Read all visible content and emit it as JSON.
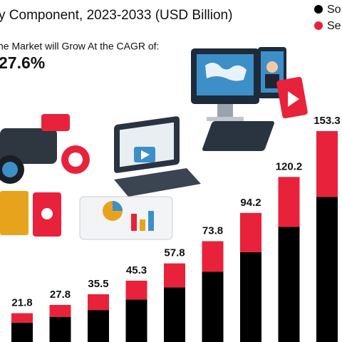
{
  "chart_data": {
    "type": "stacked-bar",
    "title": "y Component, 2023-2033 (USD Billion)",
    "subtitle": "he Market will Grow At the CAGR of:",
    "cagr": "27.6%",
    "series": [
      {
        "name": "So",
        "color": "#000000",
        "values": [
          15.0,
          19.2,
          24.1,
          31.7,
          40.5,
          51.7,
          65.9,
          84.1,
          105.8
        ]
      },
      {
        "name": "Se",
        "color": "#e8223a",
        "values": [
          6.8,
          8.6,
          11.4,
          13.6,
          17.3,
          22.1,
          28.3,
          36.1,
          47.5
        ]
      }
    ],
    "totals": [
      21.8,
      27.8,
      35.5,
      45.3,
      57.8,
      73.8,
      94.2,
      120.2,
      153.3
    ]
  }
}
